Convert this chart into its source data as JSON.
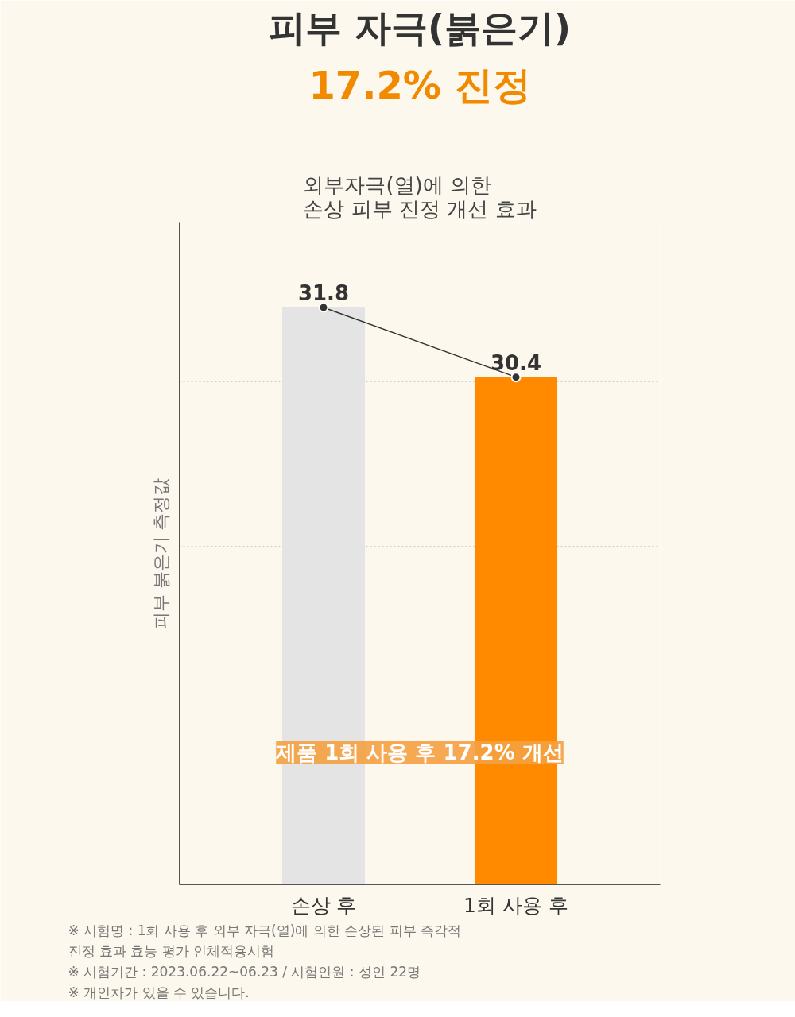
{
  "chart_data": {
    "type": "bar",
    "title": "피부 자극(붉은기)",
    "subtitle": "17.2% 진정",
    "ylabel": "피부 붉은기 측정값",
    "categories": [
      "손상 후",
      "1회 사용 후"
    ],
    "series": [
      {
        "colors": [
          "#e4e4e4",
          "#ff8a00"
        ],
        "values": [
          31.8,
          30.4
        ]
      },
      {
        "type": "line",
        "color": "#333333",
        "marker": "circle",
        "values": [
          31.8,
          30.4
        ],
        "value_labels": [
          "31.8",
          "30.4"
        ]
      }
    ],
    "ylim": [
      20.2,
      33.5
    ],
    "yticks": [
      {
        "value": 23.8,
        "label": null
      },
      {
        "value": 27.0,
        "label": null
      },
      {
        "value": 30.3,
        "label": null
      },
      {
        "value": 33.5,
        "label": null
      }
    ],
    "grid": "y",
    "tick_labels": "x",
    "annotations": [
      "외부자극(열)에 의한\n손상 피부 진정 개선 효과",
      "제품 1회 사용 후 17.2% 개선",
      "※ 시험명 : 1회 사용 후 외부 자극(열)에 의한 손상된 피부 즉각적\n        진정 효과 효능 평가 인체적용시험",
      "※ 시험기간 : 2023.06.22~06.23 / 시험인원 : 성인 22명",
      "※ 개인차가 있을 수 있습니다."
    ]
  }
}
